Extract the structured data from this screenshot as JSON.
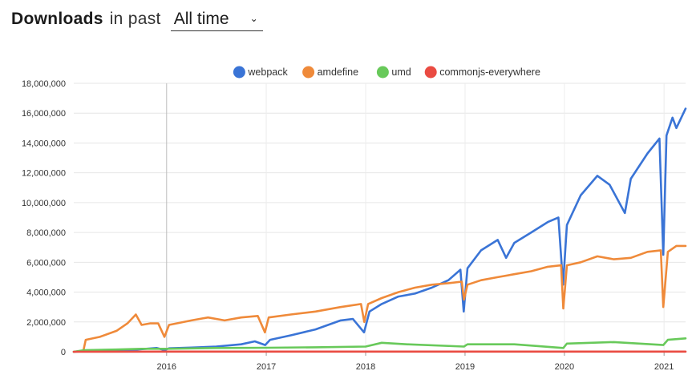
{
  "header": {
    "title": "Downloads",
    "in_past": "in past",
    "period_selected": "All time",
    "caret_icon": "chevron-down-icon"
  },
  "chart_data": {
    "type": "line",
    "title": "",
    "xlabel": "",
    "ylabel": "",
    "legend_position": "top-center",
    "grid": true,
    "x_range": [
      "2015-01-25",
      "2021-03-21"
    ],
    "ylim": [
      0,
      18000000
    ],
    "y_ticks": [
      "0",
      "2,000,000",
      "4,000,000",
      "6,000,000",
      "8,000,000",
      "10,000,000",
      "12,000,000",
      "14,000,000",
      "16,000,000",
      "18,000,000"
    ],
    "x_ticks": [
      "2016",
      "2017",
      "2018",
      "2019",
      "2020",
      "2021"
    ],
    "series": [
      {
        "name": "webpack",
        "color": "#3a74d6",
        "points": [
          [
            "2015-01-25",
            0
          ],
          [
            "2015-06-01",
            100000
          ],
          [
            "2015-09-15",
            150000
          ],
          [
            "2015-11-25",
            250000
          ],
          [
            "2015-12-25",
            120000
          ],
          [
            "2016-01-10",
            230000
          ],
          [
            "2016-04-01",
            280000
          ],
          [
            "2016-07-01",
            350000
          ],
          [
            "2016-10-01",
            500000
          ],
          [
            "2016-11-20",
            700000
          ],
          [
            "2016-12-28",
            450000
          ],
          [
            "2017-01-15",
            800000
          ],
          [
            "2017-04-01",
            1100000
          ],
          [
            "2017-07-01",
            1500000
          ],
          [
            "2017-10-01",
            2100000
          ],
          [
            "2017-11-15",
            2200000
          ],
          [
            "2017-12-26",
            1300000
          ],
          [
            "2018-01-15",
            2700000
          ],
          [
            "2018-03-01",
            3200000
          ],
          [
            "2018-05-01",
            3700000
          ],
          [
            "2018-07-01",
            3900000
          ],
          [
            "2018-09-01",
            4300000
          ],
          [
            "2018-11-01",
            4800000
          ],
          [
            "2018-12-15",
            5500000
          ],
          [
            "2018-12-27",
            2700000
          ],
          [
            "2019-01-10",
            5600000
          ],
          [
            "2019-03-01",
            6800000
          ],
          [
            "2019-05-01",
            7500000
          ],
          [
            "2019-06-01",
            6300000
          ],
          [
            "2019-07-01",
            7300000
          ],
          [
            "2019-09-01",
            8000000
          ],
          [
            "2019-11-01",
            8700000
          ],
          [
            "2019-12-10",
            9000000
          ],
          [
            "2019-12-27",
            4500000
          ],
          [
            "2020-01-10",
            8500000
          ],
          [
            "2020-03-01",
            10500000
          ],
          [
            "2020-05-01",
            11800000
          ],
          [
            "2020-06-15",
            11200000
          ],
          [
            "2020-08-10",
            9300000
          ],
          [
            "2020-09-01",
            11600000
          ],
          [
            "2020-11-01",
            13300000
          ],
          [
            "2020-12-15",
            14300000
          ],
          [
            "2020-12-29",
            6500000
          ],
          [
            "2021-01-10",
            14500000
          ],
          [
            "2021-02-01",
            15700000
          ],
          [
            "2021-02-15",
            15000000
          ],
          [
            "2021-03-21",
            16300000
          ]
        ]
      },
      {
        "name": "amdefine",
        "color": "#ef8a3a",
        "points": [
          [
            "2015-01-25",
            0
          ],
          [
            "2015-03-01",
            50000
          ],
          [
            "2015-03-10",
            800000
          ],
          [
            "2015-05-01",
            1000000
          ],
          [
            "2015-07-01",
            1400000
          ],
          [
            "2015-08-10",
            1900000
          ],
          [
            "2015-09-10",
            2500000
          ],
          [
            "2015-10-01",
            1800000
          ],
          [
            "2015-11-01",
            1900000
          ],
          [
            "2015-12-01",
            1900000
          ],
          [
            "2015-12-24",
            1000000
          ],
          [
            "2016-01-10",
            1800000
          ],
          [
            "2016-04-01",
            2100000
          ],
          [
            "2016-06-01",
            2300000
          ],
          [
            "2016-08-01",
            2100000
          ],
          [
            "2016-10-01",
            2300000
          ],
          [
            "2016-12-01",
            2400000
          ],
          [
            "2016-12-27",
            1300000
          ],
          [
            "2017-01-10",
            2300000
          ],
          [
            "2017-04-01",
            2500000
          ],
          [
            "2017-07-01",
            2700000
          ],
          [
            "2017-10-01",
            3000000
          ],
          [
            "2017-12-15",
            3200000
          ],
          [
            "2017-12-27",
            2000000
          ],
          [
            "2018-01-10",
            3200000
          ],
          [
            "2018-03-01",
            3600000
          ],
          [
            "2018-05-01",
            4000000
          ],
          [
            "2018-07-01",
            4300000
          ],
          [
            "2018-09-01",
            4500000
          ],
          [
            "2018-11-01",
            4600000
          ],
          [
            "2018-12-20",
            4700000
          ],
          [
            "2018-12-28",
            3500000
          ],
          [
            "2019-01-10",
            4500000
          ],
          [
            "2019-03-01",
            4800000
          ],
          [
            "2019-05-01",
            5000000
          ],
          [
            "2019-07-01",
            5200000
          ],
          [
            "2019-09-01",
            5400000
          ],
          [
            "2019-11-01",
            5700000
          ],
          [
            "2019-12-20",
            5800000
          ],
          [
            "2019-12-28",
            2900000
          ],
          [
            "2020-01-10",
            5800000
          ],
          [
            "2020-03-01",
            6000000
          ],
          [
            "2020-05-01",
            6400000
          ],
          [
            "2020-07-01",
            6200000
          ],
          [
            "2020-09-01",
            6300000
          ],
          [
            "2020-11-01",
            6700000
          ],
          [
            "2020-12-20",
            6800000
          ],
          [
            "2020-12-29",
            3000000
          ],
          [
            "2021-01-15",
            6700000
          ],
          [
            "2021-02-15",
            7100000
          ],
          [
            "2021-03-21",
            7100000
          ]
        ]
      },
      {
        "name": "umd",
        "color": "#68c95a",
        "points": [
          [
            "2015-01-25",
            0
          ],
          [
            "2015-03-01",
            100000
          ],
          [
            "2015-07-01",
            150000
          ],
          [
            "2015-10-01",
            200000
          ],
          [
            "2016-01-01",
            200000
          ],
          [
            "2016-07-01",
            250000
          ],
          [
            "2017-01-01",
            270000
          ],
          [
            "2017-07-01",
            300000
          ],
          [
            "2018-01-01",
            350000
          ],
          [
            "2018-03-01",
            600000
          ],
          [
            "2018-06-01",
            500000
          ],
          [
            "2018-12-28",
            350000
          ],
          [
            "2019-01-10",
            500000
          ],
          [
            "2019-07-01",
            500000
          ],
          [
            "2019-12-28",
            250000
          ],
          [
            "2020-01-10",
            550000
          ],
          [
            "2020-07-01",
            650000
          ],
          [
            "2020-12-29",
            450000
          ],
          [
            "2021-01-15",
            800000
          ],
          [
            "2021-03-21",
            900000
          ]
        ]
      },
      {
        "name": "commonjs-everywhere",
        "color": "#ea4b42",
        "points": [
          [
            "2015-01-25",
            0
          ],
          [
            "2016-01-01",
            10000
          ],
          [
            "2018-01-01",
            10000
          ],
          [
            "2021-03-21",
            10000
          ]
        ]
      }
    ]
  }
}
